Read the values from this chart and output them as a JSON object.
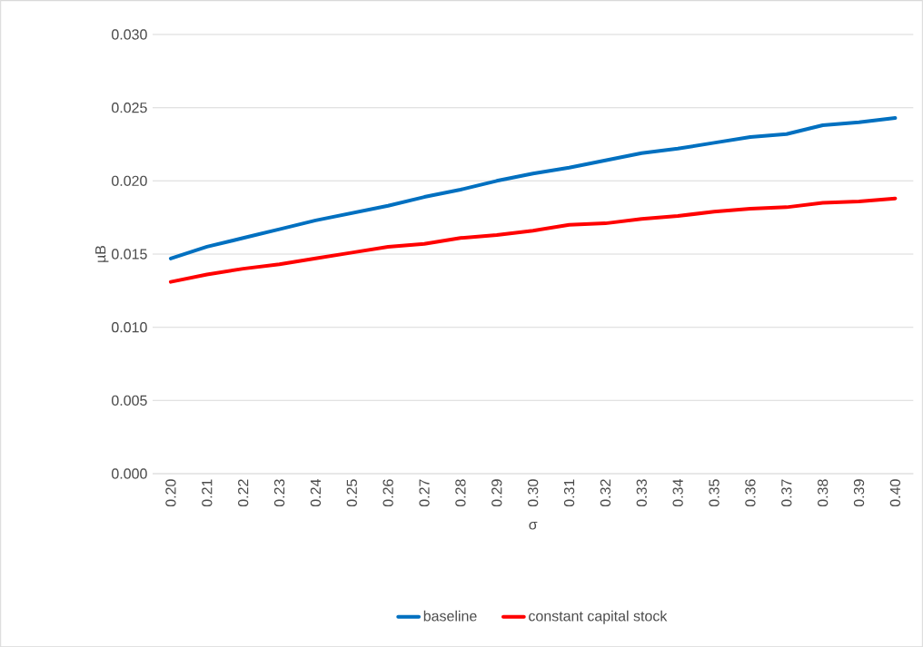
{
  "chart_data": {
    "type": "line",
    "xlabel": "σ",
    "ylabel": "µB",
    "categories": [
      "0.20",
      "0.21",
      "0.22",
      "0.23",
      "0.24",
      "0.25",
      "0.26",
      "0.27",
      "0.28",
      "0.29",
      "0.30",
      "0.31",
      "0.32",
      "0.33",
      "0.34",
      "0.35",
      "0.36",
      "0.37",
      "0.38",
      "0.39",
      "0.40"
    ],
    "series": [
      {
        "name": "baseline",
        "color": "#0070c0",
        "values": [
          0.0147,
          0.0155,
          0.0161,
          0.0167,
          0.0173,
          0.0178,
          0.0183,
          0.0189,
          0.0194,
          0.02,
          0.0205,
          0.0209,
          0.0214,
          0.0219,
          0.0222,
          0.0226,
          0.023,
          0.0232,
          0.0238,
          0.024,
          0.0243
        ]
      },
      {
        "name": "constant capital stock",
        "color": "#ff0000",
        "values": [
          0.0131,
          0.0136,
          0.014,
          0.0143,
          0.0147,
          0.0151,
          0.0155,
          0.0157,
          0.0161,
          0.0163,
          0.0166,
          0.017,
          0.0171,
          0.0174,
          0.0176,
          0.0179,
          0.0181,
          0.0182,
          0.0185,
          0.0186,
          0.0188
        ]
      }
    ],
    "ylim": [
      0,
      0.03
    ],
    "yticks": [
      {
        "value": 0,
        "label": "0.000"
      },
      {
        "value": 0.005,
        "label": "0.005"
      },
      {
        "value": 0.01,
        "label": "0.010"
      },
      {
        "value": 0.015,
        "label": "0.015"
      },
      {
        "value": 0.02,
        "label": "0.020"
      },
      {
        "value": 0.025,
        "label": "0.025"
      },
      {
        "value": 0.03,
        "label": "0.030"
      }
    ],
    "grid": "y",
    "legend": "bottom",
    "marker": "none",
    "line_style": "solid"
  }
}
